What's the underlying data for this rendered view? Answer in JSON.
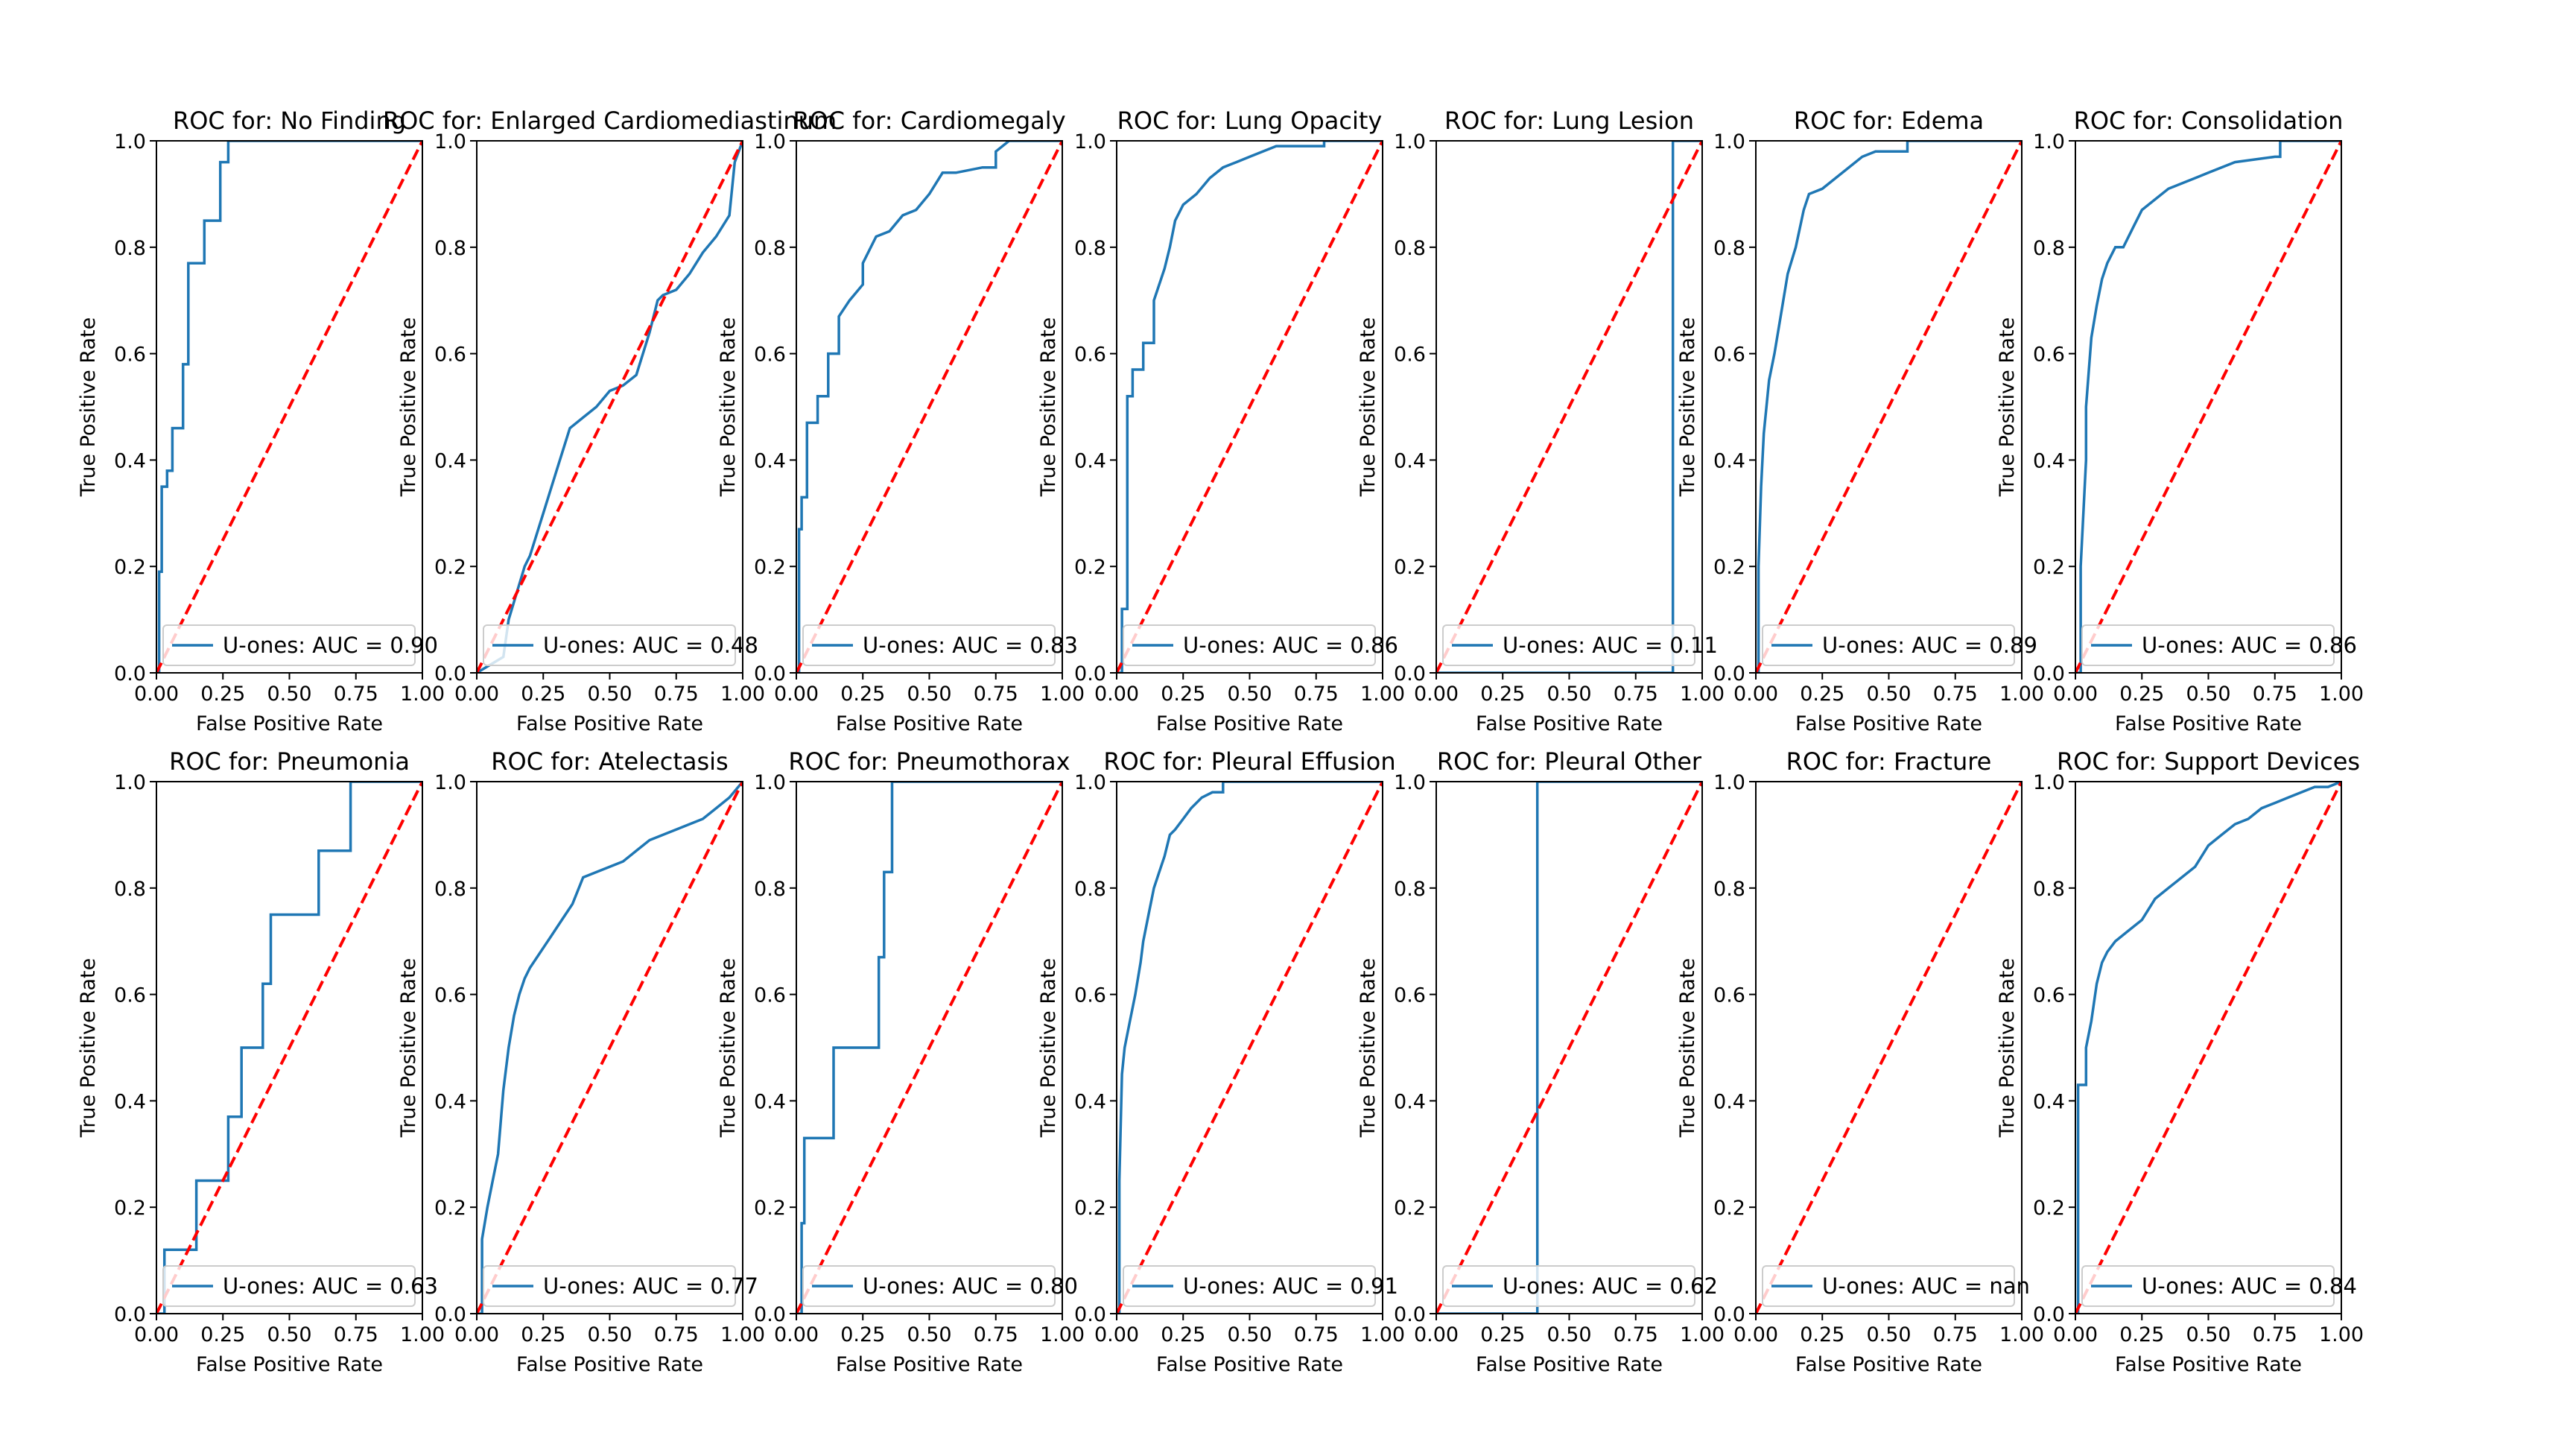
{
  "figure": {
    "colors": {
      "roc_line": "#1f77b4",
      "chance_line": "#ff0000"
    },
    "x_ticks": [
      "0.00",
      "0.25",
      "0.50",
      "0.75",
      "1.00"
    ],
    "y_ticks": [
      "0.0",
      "0.2",
      "0.4",
      "0.6",
      "0.8",
      "1.0"
    ]
  },
  "chart_data": [
    {
      "type": "line",
      "title": "ROC for: No Finding",
      "xlabel": "False Positive Rate",
      "ylabel": "True Positive Rate",
      "xlim": [
        0,
        1
      ],
      "ylim": [
        0,
        1
      ],
      "legend": "U-ones: AUC = 0.90",
      "legend_position": "lower right",
      "series": [
        {
          "name": "U-ones: AUC = 0.90",
          "x": [
            0,
            0.01,
            0.01,
            0.02,
            0.02,
            0.04,
            0.04,
            0.06,
            0.06,
            0.1,
            0.1,
            0.12,
            0.12,
            0.18,
            0.18,
            0.24,
            0.24,
            0.27,
            0.27,
            1.0
          ],
          "y": [
            0,
            0,
            0.19,
            0.19,
            0.35,
            0.35,
            0.38,
            0.38,
            0.46,
            0.46,
            0.58,
            0.58,
            0.77,
            0.77,
            0.85,
            0.85,
            0.96,
            0.96,
            1.0,
            1.0
          ]
        },
        {
          "name": "chance",
          "x": [
            0,
            1
          ],
          "y": [
            0,
            1
          ]
        }
      ]
    },
    {
      "type": "line",
      "title": "ROC for: Enlarged Cardiomediastinum",
      "xlabel": "False Positive Rate",
      "ylabel": "True Positive Rate",
      "xlim": [
        0,
        1
      ],
      "ylim": [
        0,
        1
      ],
      "legend": "U-ones: AUC = 0.48",
      "legend_position": "lower right",
      "series": [
        {
          "name": "U-ones: AUC = 0.48",
          "x": [
            0,
            0.1,
            0.12,
            0.18,
            0.2,
            0.25,
            0.3,
            0.35,
            0.4,
            0.45,
            0.5,
            0.55,
            0.6,
            0.65,
            0.68,
            0.7,
            0.75,
            0.8,
            0.85,
            0.9,
            0.95,
            0.97,
            1.0
          ],
          "y": [
            0,
            0.03,
            0.1,
            0.2,
            0.22,
            0.3,
            0.38,
            0.46,
            0.48,
            0.5,
            0.53,
            0.54,
            0.56,
            0.64,
            0.7,
            0.71,
            0.72,
            0.75,
            0.79,
            0.82,
            0.86,
            0.96,
            1.0
          ]
        },
        {
          "name": "chance",
          "x": [
            0,
            1
          ],
          "y": [
            0,
            1
          ]
        }
      ]
    },
    {
      "type": "line",
      "title": "ROC for: Cardiomegaly",
      "xlabel": "False Positive Rate",
      "ylabel": "True Positive Rate",
      "xlim": [
        0,
        1
      ],
      "ylim": [
        0,
        1
      ],
      "legend": "U-ones: AUC = 0.83",
      "legend_position": "lower right",
      "series": [
        {
          "name": "U-ones: AUC = 0.83",
          "x": [
            0,
            0.01,
            0.01,
            0.02,
            0.02,
            0.04,
            0.04,
            0.08,
            0.08,
            0.12,
            0.12,
            0.16,
            0.16,
            0.2,
            0.25,
            0.25,
            0.3,
            0.35,
            0.4,
            0.45,
            0.5,
            0.55,
            0.6,
            0.7,
            0.75,
            0.75,
            0.8,
            1.0
          ],
          "y": [
            0,
            0,
            0.27,
            0.27,
            0.33,
            0.33,
            0.47,
            0.47,
            0.52,
            0.52,
            0.6,
            0.6,
            0.67,
            0.7,
            0.73,
            0.77,
            0.82,
            0.83,
            0.86,
            0.87,
            0.9,
            0.94,
            0.94,
            0.95,
            0.95,
            0.98,
            1.0,
            1.0
          ]
        },
        {
          "name": "chance",
          "x": [
            0,
            1
          ],
          "y": [
            0,
            1
          ]
        }
      ]
    },
    {
      "type": "line",
      "title": "ROC for: Lung Opacity",
      "xlabel": "False Positive Rate",
      "ylabel": "True Positive Rate",
      "xlim": [
        0,
        1
      ],
      "ylim": [
        0,
        1
      ],
      "legend": "U-ones: AUC = 0.86",
      "legend_position": "lower right",
      "series": [
        {
          "name": "U-ones: AUC = 0.86",
          "x": [
            0,
            0.02,
            0.02,
            0.04,
            0.04,
            0.06,
            0.06,
            0.1,
            0.1,
            0.14,
            0.14,
            0.18,
            0.2,
            0.22,
            0.25,
            0.3,
            0.35,
            0.4,
            0.45,
            0.5,
            0.55,
            0.6,
            0.7,
            0.78,
            0.78,
            1.0
          ],
          "y": [
            0,
            0,
            0.12,
            0.12,
            0.52,
            0.52,
            0.57,
            0.57,
            0.62,
            0.62,
            0.7,
            0.76,
            0.8,
            0.85,
            0.88,
            0.9,
            0.93,
            0.95,
            0.96,
            0.97,
            0.98,
            0.99,
            0.99,
            0.99,
            1.0,
            1.0
          ]
        },
        {
          "name": "chance",
          "x": [
            0,
            1
          ],
          "y": [
            0,
            1
          ]
        }
      ]
    },
    {
      "type": "line",
      "title": "ROC for: Lung Lesion",
      "xlabel": "False Positive Rate",
      "ylabel": "True Positive Rate",
      "xlim": [
        0,
        1
      ],
      "ylim": [
        0,
        1
      ],
      "legend": "U-ones: AUC = 0.11",
      "legend_position": "lower right",
      "series": [
        {
          "name": "U-ones: AUC = 0.11",
          "x": [
            0,
            0.89,
            0.89,
            1.0
          ],
          "y": [
            0,
            0,
            1.0,
            1.0
          ]
        },
        {
          "name": "chance",
          "x": [
            0,
            1
          ],
          "y": [
            0,
            1
          ]
        }
      ]
    },
    {
      "type": "line",
      "title": "ROC for: Edema",
      "xlabel": "False Positive Rate",
      "ylabel": "True Positive Rate",
      "xlim": [
        0,
        1
      ],
      "ylim": [
        0,
        1
      ],
      "legend": "U-ones: AUC = 0.89",
      "legend_position": "lower right",
      "series": [
        {
          "name": "U-ones: AUC = 0.89",
          "x": [
            0,
            0.01,
            0.01,
            0.02,
            0.03,
            0.05,
            0.07,
            0.1,
            0.12,
            0.15,
            0.18,
            0.2,
            0.25,
            0.3,
            0.35,
            0.4,
            0.45,
            0.55,
            0.57,
            0.57,
            1.0
          ],
          "y": [
            0,
            0,
            0.2,
            0.35,
            0.45,
            0.55,
            0.6,
            0.69,
            0.75,
            0.8,
            0.87,
            0.9,
            0.91,
            0.93,
            0.95,
            0.97,
            0.98,
            0.98,
            0.98,
            1.0,
            1.0
          ]
        },
        {
          "name": "chance",
          "x": [
            0,
            1
          ],
          "y": [
            0,
            1
          ]
        }
      ]
    },
    {
      "type": "line",
      "title": "ROC for: Consolidation",
      "xlabel": "False Positive Rate",
      "ylabel": "True Positive Rate",
      "xlim": [
        0,
        1
      ],
      "ylim": [
        0,
        1
      ],
      "legend": "U-ones: AUC = 0.86",
      "legend_position": "lower right",
      "series": [
        {
          "name": "U-ones: AUC = 0.86",
          "x": [
            0,
            0.02,
            0.02,
            0.04,
            0.04,
            0.06,
            0.08,
            0.1,
            0.12,
            0.15,
            0.18,
            0.22,
            0.25,
            0.3,
            0.35,
            0.4,
            0.45,
            0.5,
            0.6,
            0.75,
            0.75,
            0.77,
            0.77,
            1.0
          ],
          "y": [
            0,
            0,
            0.2,
            0.4,
            0.5,
            0.63,
            0.69,
            0.74,
            0.77,
            0.8,
            0.8,
            0.84,
            0.87,
            0.89,
            0.91,
            0.92,
            0.93,
            0.94,
            0.96,
            0.97,
            0.97,
            0.97,
            1.0,
            1.0
          ]
        },
        {
          "name": "chance",
          "x": [
            0,
            1
          ],
          "y": [
            0,
            1
          ]
        }
      ]
    },
    {
      "type": "line",
      "title": "ROC for: Pneumonia",
      "xlabel": "False Positive Rate",
      "ylabel": "True Positive Rate",
      "xlim": [
        0,
        1
      ],
      "ylim": [
        0,
        1
      ],
      "legend": "U-ones: AUC = 0.63",
      "legend_position": "lower right",
      "series": [
        {
          "name": "U-ones: AUC = 0.63",
          "x": [
            0,
            0.03,
            0.03,
            0.06,
            0.06,
            0.15,
            0.15,
            0.27,
            0.27,
            0.32,
            0.32,
            0.4,
            0.4,
            0.43,
            0.43,
            0.61,
            0.61,
            0.73,
            0.73,
            1.0
          ],
          "y": [
            0,
            0,
            0.12,
            0.12,
            0.12,
            0.12,
            0.25,
            0.25,
            0.37,
            0.37,
            0.5,
            0.5,
            0.62,
            0.62,
            0.75,
            0.75,
            0.87,
            0.87,
            1.0,
            1.0
          ]
        },
        {
          "name": "chance",
          "x": [
            0,
            1
          ],
          "y": [
            0,
            1
          ]
        }
      ]
    },
    {
      "type": "line",
      "title": "ROC for: Atelectasis",
      "xlabel": "False Positive Rate",
      "ylabel": "True Positive Rate",
      "xlim": [
        0,
        1
      ],
      "ylim": [
        0,
        1
      ],
      "legend": "U-ones: AUC = 0.77",
      "legend_position": "lower right",
      "series": [
        {
          "name": "U-ones: AUC = 0.77",
          "x": [
            0,
            0.02,
            0.02,
            0.04,
            0.06,
            0.08,
            0.1,
            0.12,
            0.14,
            0.16,
            0.18,
            0.2,
            0.24,
            0.28,
            0.32,
            0.36,
            0.4,
            0.45,
            0.5,
            0.55,
            0.6,
            0.65,
            0.7,
            0.75,
            0.8,
            0.85,
            0.9,
            0.95,
            1.0
          ],
          "y": [
            0,
            0,
            0.14,
            0.2,
            0.25,
            0.3,
            0.42,
            0.5,
            0.56,
            0.6,
            0.63,
            0.65,
            0.68,
            0.71,
            0.74,
            0.77,
            0.82,
            0.83,
            0.84,
            0.85,
            0.87,
            0.89,
            0.9,
            0.91,
            0.92,
            0.93,
            0.95,
            0.97,
            1.0
          ]
        },
        {
          "name": "chance",
          "x": [
            0,
            1
          ],
          "y": [
            0,
            1
          ]
        }
      ]
    },
    {
      "type": "line",
      "title": "ROC for: Pneumothorax",
      "xlabel": "False Positive Rate",
      "ylabel": "True Positive Rate",
      "xlim": [
        0,
        1
      ],
      "ylim": [
        0,
        1
      ],
      "legend": "U-ones: AUC = 0.80",
      "legend_position": "lower right",
      "series": [
        {
          "name": "U-ones: AUC = 0.80",
          "x": [
            0,
            0.02,
            0.02,
            0.03,
            0.03,
            0.14,
            0.14,
            0.31,
            0.31,
            0.33,
            0.33,
            0.36,
            0.36,
            1.0
          ],
          "y": [
            0,
            0,
            0.17,
            0.17,
            0.33,
            0.33,
            0.5,
            0.5,
            0.67,
            0.67,
            0.83,
            0.83,
            1.0,
            1.0
          ]
        },
        {
          "name": "chance",
          "x": [
            0,
            1
          ],
          "y": [
            0,
            1
          ]
        }
      ]
    },
    {
      "type": "line",
      "title": "ROC for: Pleural Effusion",
      "xlabel": "False Positive Rate",
      "ylabel": "True Positive Rate",
      "xlim": [
        0,
        1
      ],
      "ylim": [
        0,
        1
      ],
      "legend": "U-ones: AUC = 0.91",
      "legend_position": "lower right",
      "series": [
        {
          "name": "U-ones: AUC = 0.91",
          "x": [
            0,
            0.01,
            0.01,
            0.02,
            0.03,
            0.05,
            0.07,
            0.09,
            0.1,
            0.12,
            0.14,
            0.16,
            0.18,
            0.2,
            0.22,
            0.25,
            0.28,
            0.32,
            0.36,
            0.4,
            0.4,
            0.6,
            0.6,
            1.0
          ],
          "y": [
            0,
            0,
            0.25,
            0.45,
            0.5,
            0.55,
            0.6,
            0.66,
            0.7,
            0.75,
            0.8,
            0.83,
            0.86,
            0.9,
            0.91,
            0.93,
            0.95,
            0.97,
            0.98,
            0.98,
            1.0,
            1.0,
            1.0,
            1.0
          ]
        },
        {
          "name": "chance",
          "x": [
            0,
            1
          ],
          "y": [
            0,
            1
          ]
        }
      ]
    },
    {
      "type": "line",
      "title": "ROC for: Pleural Other",
      "xlabel": "False Positive Rate",
      "ylabel": "True Positive Rate",
      "xlim": [
        0,
        1
      ],
      "ylim": [
        0,
        1
      ],
      "legend": "U-ones: AUC = 0.62",
      "legend_position": "lower right",
      "series": [
        {
          "name": "U-ones: AUC = 0.62",
          "x": [
            0,
            0.38,
            0.38,
            1.0
          ],
          "y": [
            0,
            0,
            1.0,
            1.0
          ]
        },
        {
          "name": "chance",
          "x": [
            0,
            1
          ],
          "y": [
            0,
            1
          ]
        }
      ]
    },
    {
      "type": "line",
      "title": "ROC for: Fracture",
      "xlabel": "False Positive Rate",
      "ylabel": "True Positive Rate",
      "xlim": [
        0,
        1
      ],
      "ylim": [
        0,
        1
      ],
      "legend": "U-ones: AUC = nan",
      "legend_position": "lower right",
      "series": [
        {
          "name": "U-ones: AUC = nan",
          "x": [],
          "y": []
        },
        {
          "name": "chance",
          "x": [
            0,
            1
          ],
          "y": [
            0,
            1
          ]
        }
      ]
    },
    {
      "type": "line",
      "title": "ROC for: Support Devices",
      "xlabel": "False Positive Rate",
      "ylabel": "True Positive Rate",
      "xlim": [
        0,
        1
      ],
      "ylim": [
        0,
        1
      ],
      "legend": "U-ones: AUC = 0.84",
      "legend_position": "lower right",
      "series": [
        {
          "name": "U-ones: AUC = 0.84",
          "x": [
            0,
            0.01,
            0.01,
            0.04,
            0.04,
            0.06,
            0.08,
            0.1,
            0.12,
            0.15,
            0.2,
            0.25,
            0.3,
            0.35,
            0.4,
            0.45,
            0.5,
            0.55,
            0.6,
            0.65,
            0.7,
            0.75,
            0.8,
            0.85,
            0.9,
            0.95,
            1.0
          ],
          "y": [
            0,
            0,
            0.43,
            0.43,
            0.5,
            0.55,
            0.62,
            0.66,
            0.68,
            0.7,
            0.72,
            0.74,
            0.78,
            0.8,
            0.82,
            0.84,
            0.88,
            0.9,
            0.92,
            0.93,
            0.95,
            0.96,
            0.97,
            0.98,
            0.99,
            0.99,
            1.0
          ]
        },
        {
          "name": "chance",
          "x": [
            0,
            1
          ],
          "y": [
            0,
            1
          ]
        }
      ]
    }
  ]
}
